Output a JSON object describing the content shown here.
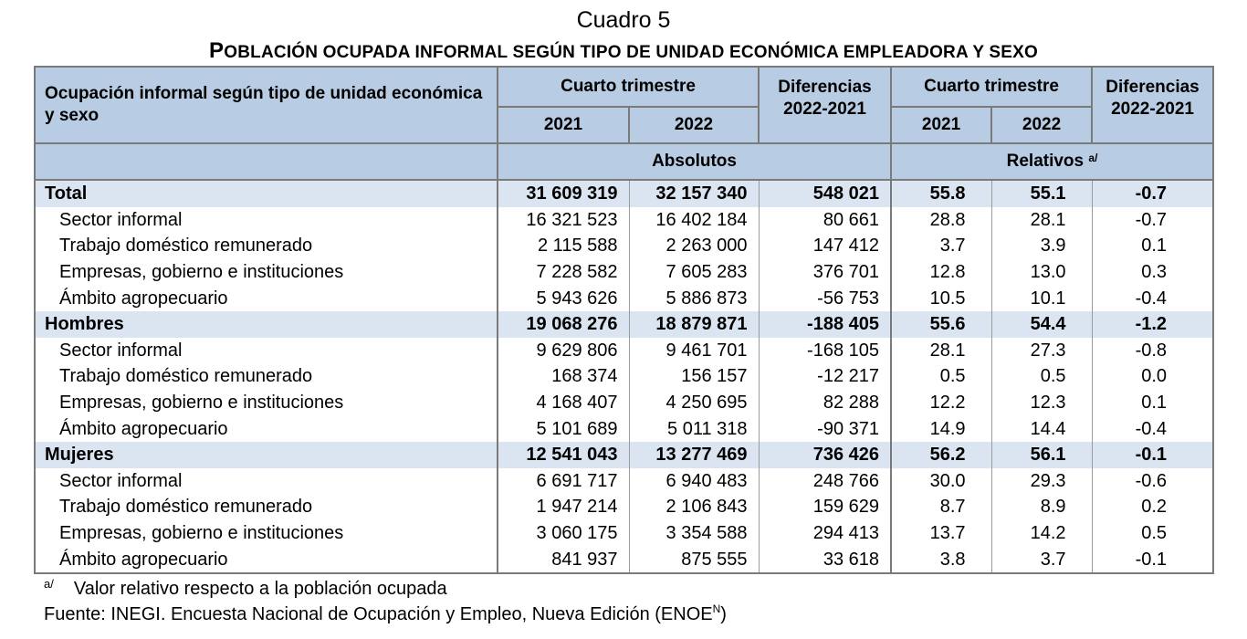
{
  "header": {
    "title": "Cuadro 5",
    "subtitle_first": "P",
    "subtitle_rest": "OBLACIÓN OCUPADA INFORMAL SEGÚN TIPO DE UNIDAD ECONÓMICA EMPLEADORA Y SEXO"
  },
  "table": {
    "row_label_header": "Ocupación informal según tipo de unidad económica y sexo",
    "period_header": "Cuarto trimestre",
    "diff_header_line1": "Diferencias",
    "diff_header_line2": "2022-2021",
    "year_2021": "2021",
    "year_2022": "2022",
    "absolutes_label": "Absolutos",
    "relatives_label": "Relativos",
    "relatives_mark": "a/",
    "rows": [
      {
        "label": "Total",
        "a2021": "31 609 319",
        "a2022": "32 157 340",
        "adiff": "548 021",
        "r2021": "55.8",
        "r2022": "55.1",
        "rdiff": "-0.7"
      },
      {
        "label": "Sector informal",
        "a2021": "16 321 523",
        "a2022": "16 402 184",
        "adiff": "80 661",
        "r2021": "28.8",
        "r2022": "28.1",
        "rdiff": "-0.7"
      },
      {
        "label": "Trabajo doméstico remunerado",
        "a2021": "2 115 588",
        "a2022": "2 263 000",
        "adiff": "147 412",
        "r2021": "3.7",
        "r2022": "3.9",
        "rdiff": "0.1"
      },
      {
        "label": "Empresas, gobierno e instituciones",
        "a2021": "7 228 582",
        "a2022": "7 605 283",
        "adiff": "376 701",
        "r2021": "12.8",
        "r2022": "13.0",
        "rdiff": "0.3"
      },
      {
        "label": "Ámbito agropecuario",
        "a2021": "5 943 626",
        "a2022": "5 886 873",
        "adiff": "-56 753",
        "r2021": "10.5",
        "r2022": "10.1",
        "rdiff": "-0.4"
      },
      {
        "label": "Hombres",
        "a2021": "19 068 276",
        "a2022": "18 879 871",
        "adiff": "-188 405",
        "r2021": "55.6",
        "r2022": "54.4",
        "rdiff": "-1.2"
      },
      {
        "label": "Sector informal",
        "a2021": "9 629 806",
        "a2022": "9 461 701",
        "adiff": "-168 105",
        "r2021": "28.1",
        "r2022": "27.3",
        "rdiff": "-0.8"
      },
      {
        "label": "Trabajo doméstico remunerado",
        "a2021": "168 374",
        "a2022": "156 157",
        "adiff": "-12 217",
        "r2021": "0.5",
        "r2022": "0.5",
        "rdiff": "0.0"
      },
      {
        "label": "Empresas, gobierno e instituciones",
        "a2021": "4 168 407",
        "a2022": "4 250 695",
        "adiff": "82 288",
        "r2021": "12.2",
        "r2022": "12.3",
        "rdiff": "0.1"
      },
      {
        "label": "Ámbito agropecuario",
        "a2021": "5 101 689",
        "a2022": "5 011 318",
        "adiff": "-90 371",
        "r2021": "14.9",
        "r2022": "14.4",
        "rdiff": "-0.4"
      },
      {
        "label": "Mujeres",
        "a2021": "12 541 043",
        "a2022": "13 277 469",
        "adiff": "736 426",
        "r2021": "56.2",
        "r2022": "56.1",
        "rdiff": "-0.1"
      },
      {
        "label": "Sector informal",
        "a2021": "6 691 717",
        "a2022": "6 940 483",
        "adiff": "248 766",
        "r2021": "30.0",
        "r2022": "29.3",
        "rdiff": "-0.6"
      },
      {
        "label": "Trabajo doméstico remunerado",
        "a2021": "1 947 214",
        "a2022": "2 106 843",
        "adiff": "159 629",
        "r2021": "8.7",
        "r2022": "8.9",
        "rdiff": "0.2"
      },
      {
        "label": "Empresas, gobierno e instituciones",
        "a2021": "3 060 175",
        "a2022": "3 354 588",
        "adiff": "294 413",
        "r2021": "13.7",
        "r2022": "14.2",
        "rdiff": "0.5"
      },
      {
        "label": "Ámbito agropecuario",
        "a2021": "841 937",
        "a2022": "875 555",
        "adiff": "33 618",
        "r2021": "3.8",
        "r2022": "3.7",
        "rdiff": "-0.1"
      }
    ]
  },
  "footer": {
    "note_mark": "a/",
    "note_text": "Valor relativo respecto a la población ocupada",
    "source_text": "Fuente: INEGI. Encuesta Nacional de Ocupación y Empleo, Nueva Edición (ENOE",
    "source_sup": "N",
    "source_close": ")"
  }
}
